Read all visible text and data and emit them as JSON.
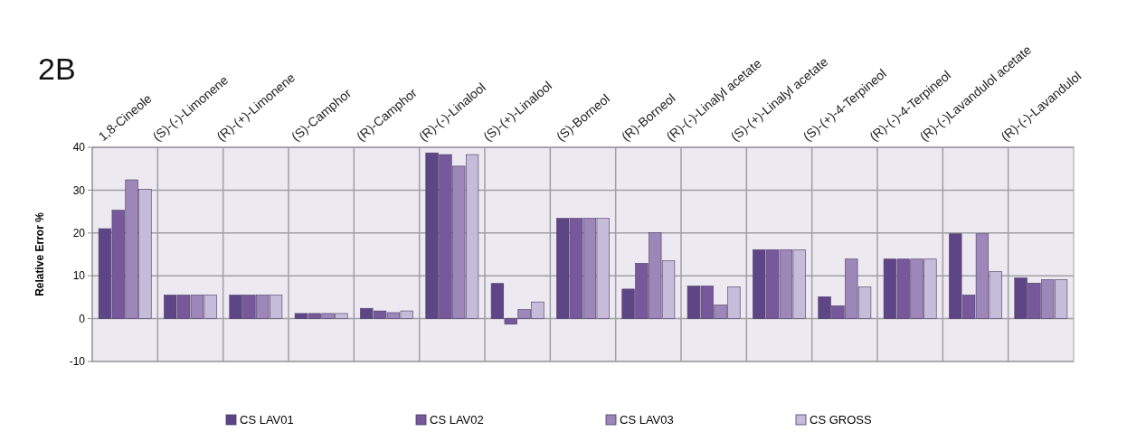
{
  "chart_data": {
    "type": "bar",
    "title": "2B",
    "ylabel": "Relative Error %",
    "categories": [
      "1,8-Cineole",
      "(S)-(-)-Limonene",
      "(R)-(+)-Limonene",
      "(S)-Camphor",
      "(R)-Camphor",
      "(R)-(-)-Linalool",
      "(S)-(+)-Linalool",
      "(S)-Borneol",
      "(R)-Borneol",
      "(R)-(-)-Linalyl acetate",
      "(S)-(+)-Linalyl acetate",
      "(S)-(+)-4-Terpineol",
      "(R)-(-)-4-Terpineol",
      "(R)-(-)Lavandulol acetate",
      "(R)-(-)-Lavandulol"
    ],
    "series": [
      {
        "name": "CS LAV01",
        "color": "#5e4585",
        "values": [
          21,
          5.5,
          5.5,
          1.2,
          2.4,
          38.7,
          8.2,
          23.4,
          6.9,
          7.6,
          16.1,
          5.1,
          13.9,
          19.8,
          9.5
        ]
      },
      {
        "name": "CS LAV02",
        "color": "#76589b",
        "values": [
          25.3,
          5.5,
          5.5,
          1.2,
          1.8,
          38.3,
          -1.3,
          23.4,
          12.9,
          7.6,
          16.1,
          3,
          13.9,
          5.5,
          8.3
        ]
      },
      {
        "name": "CS LAV03",
        "color": "#9c87b8",
        "values": [
          32.4,
          5.5,
          5.5,
          1.2,
          1.4,
          35.6,
          2.1,
          23.4,
          20.1,
          3.2,
          16.1,
          13.9,
          13.9,
          19.8,
          9.1
        ]
      },
      {
        "name": "CS GROSS",
        "color": "#c6bbd8",
        "values": [
          30.2,
          5.5,
          5.5,
          1.2,
          1.8,
          38.3,
          3.9,
          23.4,
          13.5,
          7.4,
          16.1,
          7.4,
          13.9,
          11,
          9.1
        ]
      }
    ],
    "ylim": [
      -10,
      40
    ],
    "yticks": [
      -10,
      0,
      10,
      20,
      30,
      40
    ],
    "grid": true,
    "legend": "bottom"
  }
}
